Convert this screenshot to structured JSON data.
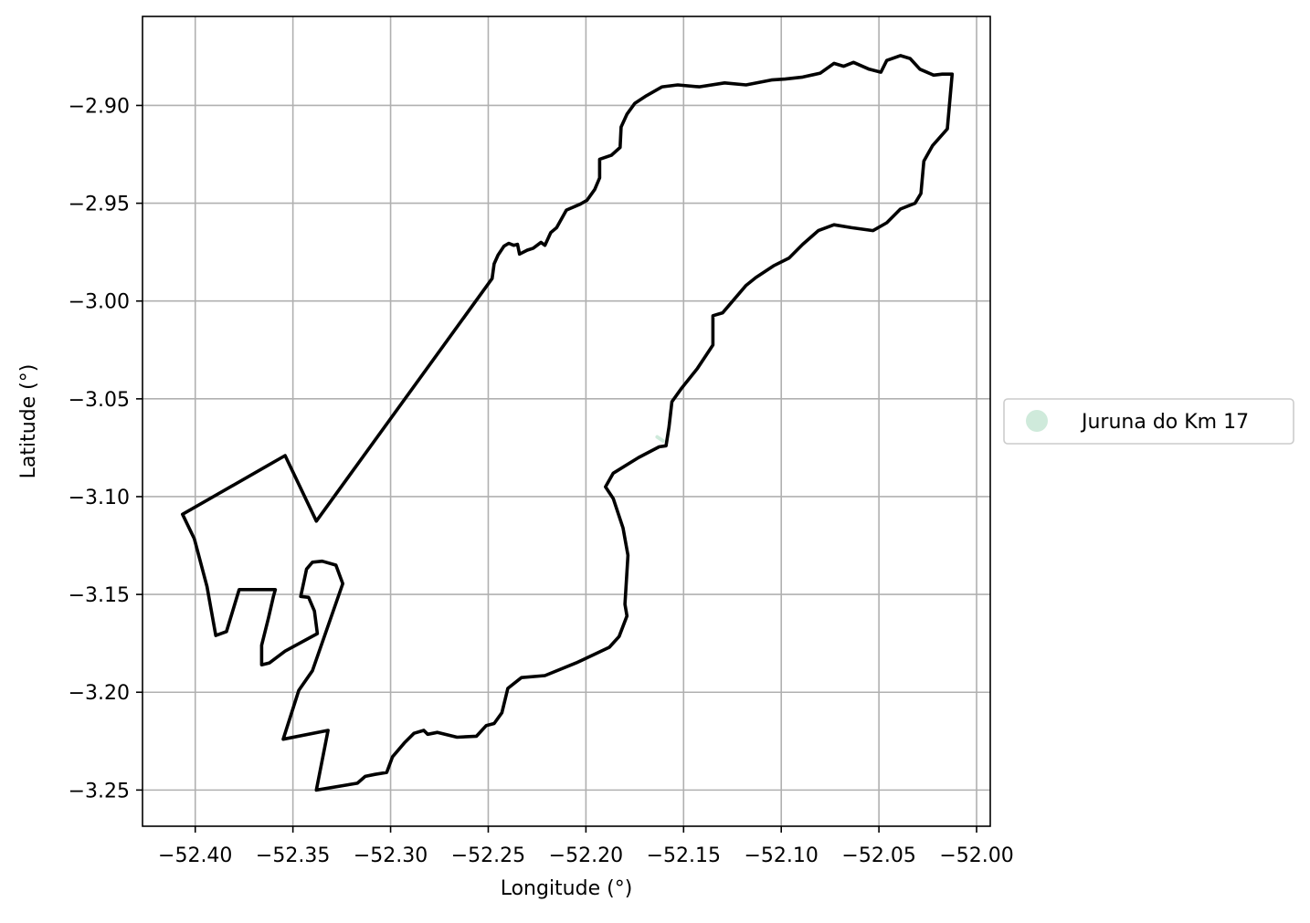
{
  "chart_data": {
    "type": "map",
    "xlabel": "Longitude (°)",
    "ylabel": "Latitude (°)",
    "xlim": [
      -52.427,
      -51.993
    ],
    "ylim": [
      -3.2685,
      -2.8545
    ],
    "grid": true,
    "xticks": [
      -52.4,
      -52.35,
      -52.3,
      -52.25,
      -52.2,
      -52.15,
      -52.1,
      -52.05,
      -52.0
    ],
    "xtick_labels": [
      "−52.40",
      "−52.35",
      "−52.30",
      "−52.25",
      "−52.20",
      "−52.15",
      "−52.10",
      "−52.05",
      "−52.00"
    ],
    "yticks": [
      -2.9,
      -2.95,
      -3.0,
      -3.05,
      -3.1,
      -3.15,
      -3.2,
      -3.25
    ],
    "ytick_labels": [
      "−2.90",
      "−2.95",
      "−3.00",
      "−3.05",
      "−3.10",
      "−3.15",
      "−3.20",
      "−3.25"
    ],
    "legend_placement": "right",
    "series": [
      {
        "name": "Juruna do Km 17",
        "color": "#cfeadb",
        "kind": "marker-small-feature",
        "coords": [
          [
            -52.1635,
            -3.0695
          ],
          [
            -52.1605,
            -3.0715
          ]
        ]
      },
      {
        "kind": "boundary-outline",
        "color": "#000000",
        "coords": [
          [
            -52.338,
            -3.1125
          ],
          [
            -52.248,
            -2.9885
          ],
          [
            -52.247,
            -2.981
          ],
          [
            -52.245,
            -2.9765
          ],
          [
            -52.242,
            -2.972
          ],
          [
            -52.2395,
            -2.9705
          ],
          [
            -52.237,
            -2.9715
          ],
          [
            -52.235,
            -2.971
          ],
          [
            -52.234,
            -2.976
          ],
          [
            -52.23,
            -2.974
          ],
          [
            -52.227,
            -2.973
          ],
          [
            -52.223,
            -2.97
          ],
          [
            -52.221,
            -2.9715
          ],
          [
            -52.218,
            -2.965
          ],
          [
            -52.215,
            -2.9625
          ],
          [
            -52.21,
            -2.9535
          ],
          [
            -52.203,
            -2.9505
          ],
          [
            -52.1995,
            -2.9485
          ],
          [
            -52.1955,
            -2.943
          ],
          [
            -52.193,
            -2.937
          ],
          [
            -52.193,
            -2.9275
          ],
          [
            -52.187,
            -2.9255
          ],
          [
            -52.1825,
            -2.9215
          ],
          [
            -52.182,
            -2.911
          ],
          [
            -52.179,
            -2.9045
          ],
          [
            -52.175,
            -2.899
          ],
          [
            -52.169,
            -2.895
          ],
          [
            -52.161,
            -2.8905
          ],
          [
            -52.153,
            -2.8895
          ],
          [
            -52.142,
            -2.8905
          ],
          [
            -52.129,
            -2.8885
          ],
          [
            -52.118,
            -2.8895
          ],
          [
            -52.105,
            -2.887
          ],
          [
            -52.098,
            -2.8865
          ],
          [
            -52.089,
            -2.8855
          ],
          [
            -52.08,
            -2.8835
          ],
          [
            -52.073,
            -2.8785
          ],
          [
            -52.068,
            -2.88
          ],
          [
            -52.063,
            -2.878
          ],
          [
            -52.055,
            -2.8815
          ],
          [
            -52.049,
            -2.883
          ],
          [
            -52.046,
            -2.877
          ],
          [
            -52.039,
            -2.8745
          ],
          [
            -52.034,
            -2.876
          ],
          [
            -52.029,
            -2.8815
          ],
          [
            -52.022,
            -2.8845
          ],
          [
            -52.0175,
            -2.884
          ],
          [
            -52.0125,
            -2.884
          ],
          [
            -52.0135,
            -2.895
          ],
          [
            -52.015,
            -2.912
          ],
          [
            -52.0225,
            -2.9205
          ],
          [
            -52.027,
            -2.9285
          ],
          [
            -52.0285,
            -2.945
          ],
          [
            -52.0315,
            -2.95
          ],
          [
            -52.039,
            -2.953
          ],
          [
            -52.046,
            -2.96
          ],
          [
            -52.053,
            -2.964
          ],
          [
            -52.064,
            -2.9625
          ],
          [
            -52.073,
            -2.961
          ],
          [
            -52.081,
            -2.964
          ],
          [
            -52.089,
            -2.971
          ],
          [
            -52.096,
            -2.978
          ],
          [
            -52.104,
            -2.982
          ],
          [
            -52.113,
            -2.988
          ],
          [
            -52.118,
            -2.992
          ],
          [
            -52.13,
            -3.006
          ],
          [
            -52.135,
            -3.0075
          ],
          [
            -52.135,
            -3.0225
          ],
          [
            -52.143,
            -3.0345
          ],
          [
            -52.151,
            -3.0445
          ],
          [
            -52.156,
            -3.0515
          ],
          [
            -52.1575,
            -3.0645
          ],
          [
            -52.159,
            -3.074
          ],
          [
            -52.1625,
            -3.0745
          ],
          [
            -52.173,
            -3.08
          ],
          [
            -52.186,
            -3.088
          ],
          [
            -52.19,
            -3.095
          ],
          [
            -52.186,
            -3.101
          ],
          [
            -52.181,
            -3.116
          ],
          [
            -52.1785,
            -3.13
          ],
          [
            -52.18,
            -3.155
          ],
          [
            -52.179,
            -3.161
          ],
          [
            -52.183,
            -3.1715
          ],
          [
            -52.188,
            -3.177
          ],
          [
            -52.205,
            -3.185
          ],
          [
            -52.221,
            -3.1915
          ],
          [
            -52.233,
            -3.1925
          ],
          [
            -52.24,
            -3.198
          ],
          [
            -52.243,
            -3.2105
          ],
          [
            -52.247,
            -3.216
          ],
          [
            -52.251,
            -3.217
          ],
          [
            -52.256,
            -3.2225
          ],
          [
            -52.266,
            -3.223
          ],
          [
            -52.276,
            -3.2205
          ],
          [
            -52.281,
            -3.2215
          ],
          [
            -52.283,
            -3.2195
          ],
          [
            -52.288,
            -3.221
          ],
          [
            -52.293,
            -3.226
          ],
          [
            -52.299,
            -3.233
          ],
          [
            -52.302,
            -3.241
          ],
          [
            -52.308,
            -3.242
          ],
          [
            -52.313,
            -3.243
          ],
          [
            -52.317,
            -3.2465
          ],
          [
            -52.338,
            -3.25
          ],
          [
            -52.332,
            -3.2195
          ],
          [
            -52.355,
            -3.224
          ],
          [
            -52.347,
            -3.199
          ],
          [
            -52.34,
            -3.189
          ],
          [
            -52.3245,
            -3.1445
          ],
          [
            -52.328,
            -3.135
          ],
          [
            -52.335,
            -3.133
          ],
          [
            -52.34,
            -3.1335
          ],
          [
            -52.343,
            -3.137
          ],
          [
            -52.346,
            -3.151
          ],
          [
            -52.342,
            -3.1515
          ],
          [
            -52.339,
            -3.1585
          ],
          [
            -52.3375,
            -3.17
          ],
          [
            -52.354,
            -3.179
          ],
          [
            -52.362,
            -3.185
          ],
          [
            -52.366,
            -3.186
          ],
          [
            -52.366,
            -3.176
          ],
          [
            -52.3625,
            -3.162
          ],
          [
            -52.36,
            -3.151
          ],
          [
            -52.359,
            -3.1475
          ],
          [
            -52.3775,
            -3.1475
          ],
          [
            -52.384,
            -3.169
          ],
          [
            -52.3895,
            -3.171
          ],
          [
            -52.394,
            -3.146
          ],
          [
            -52.4005,
            -3.1215
          ],
          [
            -52.4065,
            -3.109
          ],
          [
            -52.354,
            -3.079
          ],
          [
            -52.338,
            -3.1125
          ]
        ]
      }
    ]
  }
}
